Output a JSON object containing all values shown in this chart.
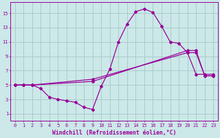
{
  "background_color": "#cce8e8",
  "grid_color": "#aacccc",
  "line_color": "#990099",
  "xlabel": "Windchill (Refroidissement éolien,°C)",
  "xlim": [
    -0.5,
    23.5
  ],
  "ylim": [
    0,
    16.5
  ],
  "xticks": [
    0,
    1,
    2,
    3,
    4,
    5,
    6,
    7,
    8,
    9,
    10,
    11,
    12,
    13,
    14,
    15,
    16,
    17,
    18,
    19,
    20,
    21,
    22,
    23
  ],
  "yticks": [
    1,
    3,
    5,
    7,
    9,
    11,
    13,
    15
  ],
  "curve_spike_x": [
    0,
    1,
    2,
    3,
    4,
    5,
    6,
    7,
    8,
    9,
    10,
    11,
    12,
    13,
    14,
    15,
    16,
    17,
    18,
    19,
    20,
    21,
    22,
    23
  ],
  "curve_spike_y": [
    5,
    5,
    5,
    4.5,
    3.3,
    3.0,
    2.8,
    2.6,
    1.9,
    1.6,
    4.8,
    7.2,
    11.0,
    13.5,
    15.2,
    15.6,
    15.1,
    13.2,
    11.0,
    10.8,
    9.5,
    9.5,
    6.3,
    6.3
  ],
  "curve_mid_x": [
    0,
    1,
    2,
    9,
    20,
    21,
    22,
    23
  ],
  "curve_mid_y": [
    5,
    5,
    5,
    5.8,
    9.5,
    6.5,
    6.5,
    6.5
  ],
  "curve_low_x": [
    0,
    1,
    2,
    9,
    20,
    21,
    22,
    23
  ],
  "curve_low_y": [
    5,
    5,
    5,
    5.5,
    9.8,
    9.8,
    6.3,
    6.3
  ],
  "axis_fontsize": 5.8,
  "tick_fontsize": 5.0
}
